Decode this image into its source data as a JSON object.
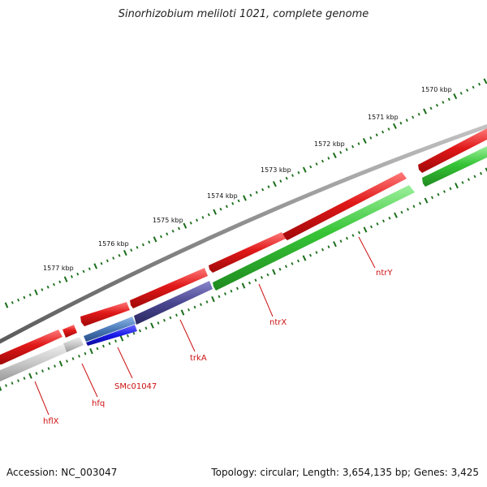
{
  "title": "Sinorhizobium meliloti 1021, complete genome",
  "footer": {
    "accession": "Accession: NC_003047",
    "summary": "Topology: circular; Length: 3,654,135 bp; Genes: 3,425"
  },
  "colors": {
    "backbone": "#8a8a8a",
    "forward_gene": "#e01818",
    "reverse_gene": "#36c436",
    "hfq_gene": "#c8c8c8",
    "blue_gene": "#1818e8",
    "steelblue_gene": "#4a7ab8",
    "trkA_gene": "#4a4690",
    "label": "#cc1111",
    "tick": "#1a6e1a"
  },
  "ticks": [
    {
      "label": "1570 kbp",
      "kbp": 1570
    },
    {
      "label": "1571 kbp",
      "kbp": 1571
    },
    {
      "label": "1572 kbp",
      "kbp": 1572
    },
    {
      "label": "1573 kbp",
      "kbp": 1573
    },
    {
      "label": "1574 kbp",
      "kbp": 1574
    },
    {
      "label": "1575 kbp",
      "kbp": 1575
    },
    {
      "label": "1576 kbp",
      "kbp": 1576
    },
    {
      "label": "1577 kbp",
      "kbp": 1577
    }
  ],
  "gene_labels": [
    {
      "name": "ntrY"
    },
    {
      "name": "ntrX"
    },
    {
      "name": "trkA"
    },
    {
      "name": "SMc01047"
    },
    {
      "name": "hfq"
    },
    {
      "name": "hflX"
    }
  ]
}
